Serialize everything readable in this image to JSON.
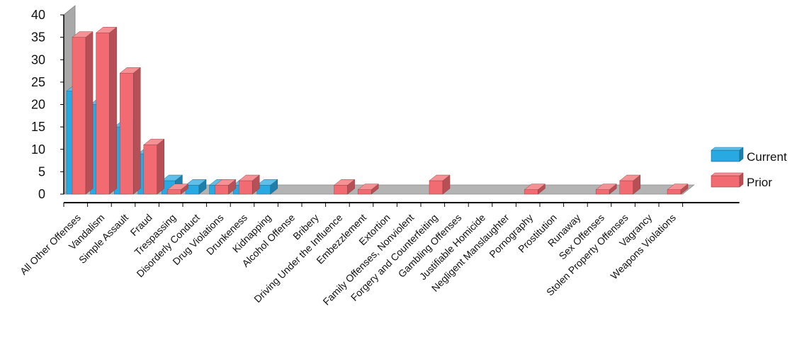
{
  "colors": {
    "current": "#29a9e1",
    "prior": "#f26b72",
    "wall": "#a9a9a9",
    "floor": "#b4b4b4",
    "axis": "#000000"
  },
  "chart_data": {
    "type": "bar",
    "title": "",
    "xlabel": "",
    "ylabel": "",
    "ylim": [
      0,
      40
    ],
    "yticks": [
      0,
      5,
      10,
      15,
      20,
      25,
      30,
      35,
      40
    ],
    "grid": false,
    "legend_position": "right",
    "categories": [
      "All Other Offenses",
      "Vandalism",
      "Simple Assault",
      "Fraud",
      "Trespassing",
      "Disorderly Conduct",
      "Drug Violations",
      "Drunkeness",
      "Kidnapping",
      "Alcohol Offense",
      "Bribery",
      "Driving Under the Influence",
      "Embezzlement",
      "Extortion",
      "Family Offenses, Nonviolent",
      "Forgery and Counterfeiting",
      "Gambling Offenses",
      "Justifiable Homicide",
      "Negligent Manslaughter",
      "Pornography",
      "Prostitution",
      "Runaway",
      "Sex Offenses",
      "Stolen Property Offenses",
      "Vagrancy",
      "Weapons Violations"
    ],
    "series": [
      {
        "name": "Current",
        "values": [
          23,
          20,
          15,
          9,
          3,
          2,
          2,
          2,
          2,
          0,
          0,
          0,
          0,
          0,
          0,
          0,
          0,
          0,
          0,
          0,
          0,
          0,
          0,
          0,
          0,
          0
        ]
      },
      {
        "name": "Prior",
        "values": [
          35,
          36,
          27,
          11,
          1,
          0,
          2,
          3,
          0,
          0,
          0,
          2,
          1,
          0,
          0,
          3,
          0,
          0,
          0,
          1,
          0,
          0,
          1,
          3,
          0,
          1
        ]
      }
    ]
  }
}
